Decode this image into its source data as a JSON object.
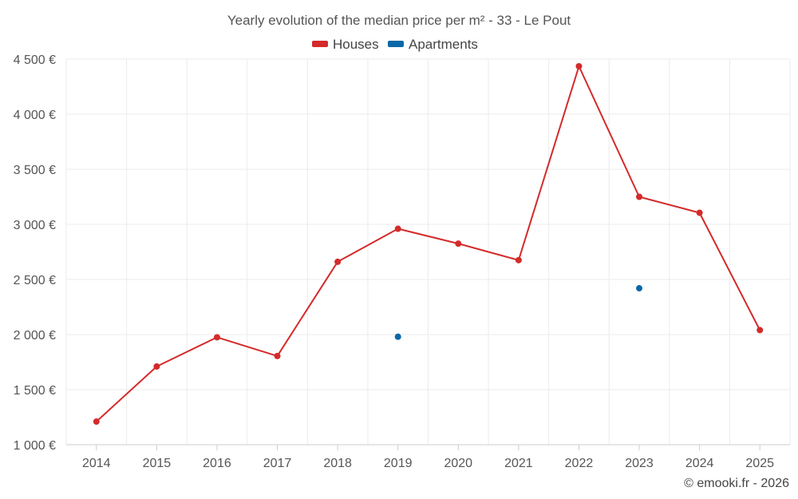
{
  "chart_data": {
    "type": "line",
    "title": "Yearly evolution of the median price per m² - 33 - Le Pout",
    "categories": [
      "2014",
      "2015",
      "2016",
      "2017",
      "2018",
      "2019",
      "2020",
      "2021",
      "2022",
      "2023",
      "2024",
      "2025"
    ],
    "series": [
      {
        "name": "Houses",
        "color": "#d42a2a",
        "values": [
          1210,
          1710,
          1975,
          1805,
          2660,
          2960,
          2825,
          2675,
          4435,
          3250,
          3105,
          2040
        ]
      },
      {
        "name": "Apartments",
        "color": "#0a68a8",
        "values": [
          null,
          null,
          null,
          null,
          null,
          1980,
          null,
          null,
          null,
          2420,
          null,
          null
        ]
      }
    ],
    "ylim": [
      1000,
      4500
    ],
    "yticks": [
      1000,
      1500,
      2000,
      2500,
      3000,
      3500,
      4000,
      4500
    ],
    "ytick_labels": [
      "1 000 €",
      "1 500 €",
      "2 000 €",
      "2 500 €",
      "3 000 €",
      "3 500 €",
      "4 000 €",
      "4 500 €"
    ],
    "legend_position": "top-center",
    "grid": true,
    "credit": "© emooki.fr - 2026"
  }
}
